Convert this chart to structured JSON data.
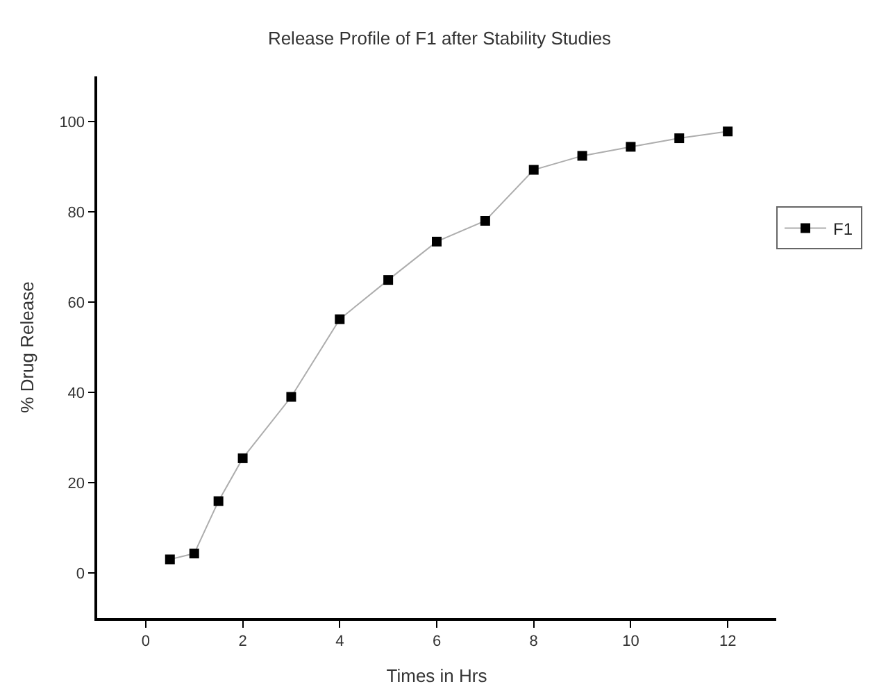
{
  "chart_data": {
    "type": "line",
    "title": "Release Profile of F1 after Stability Studies",
    "xlabel": "Times in Hrs",
    "ylabel": "% Drug Release",
    "x": [
      0.5,
      1,
      1.5,
      2,
      3,
      4,
      5,
      6,
      7,
      8,
      9,
      10,
      11,
      12
    ],
    "series": [
      {
        "name": "F1",
        "color": "#000000",
        "values": [
          3.0,
          4.3,
          15.9,
          25.4,
          39.0,
          56.2,
          64.9,
          73.4,
          78.0,
          89.3,
          92.4,
          94.4,
          96.3,
          97.8
        ]
      }
    ],
    "xlim": [
      -1,
      13
    ],
    "xticks": [
      0,
      2,
      4,
      6,
      8,
      10,
      12
    ],
    "ylim": [
      -10,
      110
    ],
    "yticks": [
      0,
      20,
      40,
      60,
      80,
      100
    ],
    "marker": "square",
    "line_style": "solid",
    "legend": "right"
  }
}
